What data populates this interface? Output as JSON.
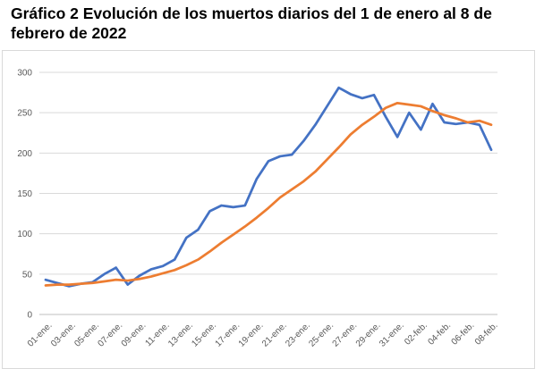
{
  "title": "Gráfico 2 Evolución de los muertos diarios del 1 de enero al 8 de febrero de 2022",
  "chart_data": {
    "type": "line",
    "title": "Gráfico 2 Evolución de los muertos diarios del 1 de enero al 8 de febrero de 2022",
    "xlabel": "",
    "ylabel": "",
    "ylim": [
      0,
      300
    ],
    "yticks": [
      0,
      50,
      100,
      150,
      200,
      250,
      300
    ],
    "grid": true,
    "legend": "none",
    "x": [
      "01-ene.",
      "02-ene.",
      "03-ene.",
      "04-ene.",
      "05-ene.",
      "06-ene.",
      "07-ene.",
      "08-ene.",
      "09-ene.",
      "10-ene.",
      "11-ene.",
      "12-ene.",
      "13-ene.",
      "14-ene.",
      "15-ene.",
      "16-ene.",
      "17-ene.",
      "18-ene.",
      "19-ene.",
      "20-ene.",
      "21-ene.",
      "22-ene.",
      "23-ene.",
      "24-ene.",
      "25-ene.",
      "26-ene.",
      "27-ene.",
      "28-ene.",
      "29-ene.",
      "30-ene.",
      "31-ene.",
      "01-feb.",
      "02-feb.",
      "03-feb.",
      "04-feb.",
      "05-feb.",
      "06-feb.",
      "07-feb.",
      "08-feb."
    ],
    "xtick_labels": [
      "01-ene.",
      "03-ene.",
      "05-ene.",
      "07-ene.",
      "09-ene.",
      "11-ene.",
      "13-ene.",
      "15-ene.",
      "17-ene.",
      "19-ene.",
      "21-ene.",
      "23-ene.",
      "25-ene.",
      "27-ene.",
      "29-ene.",
      "31-ene.",
      "02-feb.",
      "04-feb.",
      "06-feb.",
      "08-feb."
    ],
    "series": [
      {
        "color": "#4472c4",
        "values": [
          43,
          39,
          35,
          38,
          40,
          50,
          58,
          37,
          48,
          56,
          60,
          68,
          95,
          105,
          128,
          135,
          133,
          135,
          168,
          190,
          196,
          198,
          215,
          235,
          258,
          281,
          273,
          268,
          272,
          245,
          220,
          250,
          229,
          261,
          238,
          236,
          238,
          235,
          204
        ]
      },
      {
        "color": "#ed7d31",
        "values": [
          36,
          37,
          37,
          38,
          39,
          41,
          43,
          42,
          44,
          47,
          51,
          55,
          61,
          68,
          78,
          89,
          99,
          109,
          120,
          132,
          145,
          155,
          165,
          177,
          192,
          207,
          223,
          235,
          245,
          256,
          262,
          260,
          258,
          252,
          247,
          243,
          238,
          240,
          235
        ]
      }
    ]
  }
}
